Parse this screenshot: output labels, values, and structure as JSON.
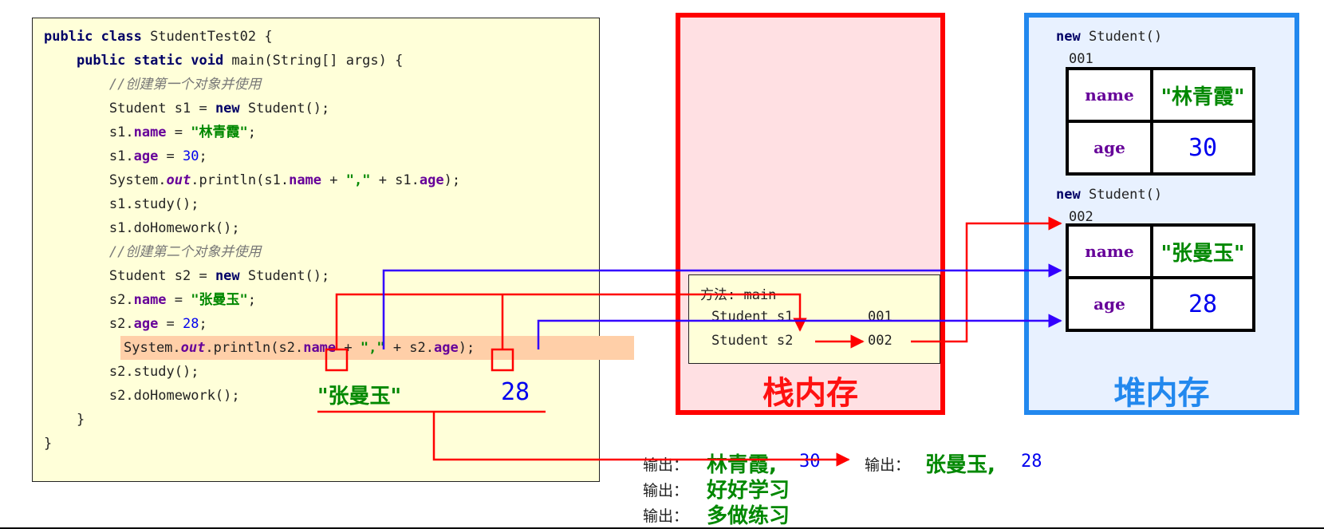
{
  "code": {
    "lines": [
      {
        "parts": [
          {
            "t": "public class ",
            "c": "kw"
          },
          {
            "t": "StudentTest02 {",
            "c": ""
          }
        ]
      },
      {
        "parts": [
          {
            "t": "    "
          },
          {
            "t": "public static void ",
            "c": "kw"
          },
          {
            "t": "main(String[] args) {",
            "c": ""
          }
        ]
      },
      {
        "parts": [
          {
            "t": "        "
          },
          {
            "t": "//创建第一个对象并使用",
            "c": "cm"
          }
        ]
      },
      {
        "parts": [
          {
            "t": "        Student s1 = "
          },
          {
            "t": "new",
            "c": "kw"
          },
          {
            "t": " Student();"
          }
        ]
      },
      {
        "parts": [
          {
            "t": "        s1."
          },
          {
            "t": "name",
            "c": "field"
          },
          {
            "t": " = "
          },
          {
            "t": "\"林青霞\"",
            "c": "str"
          },
          {
            "t": ";"
          }
        ]
      },
      {
        "parts": [
          {
            "t": "        s1."
          },
          {
            "t": "age",
            "c": "field"
          },
          {
            "t": " = "
          },
          {
            "t": "30",
            "c": "num"
          },
          {
            "t": ";"
          }
        ]
      },
      {
        "parts": [
          {
            "t": "        System."
          },
          {
            "t": "out",
            "c": "out"
          },
          {
            "t": ".println(s1."
          },
          {
            "t": "name",
            "c": "field"
          },
          {
            "t": " + "
          },
          {
            "t": "\",\"",
            "c": "str"
          },
          {
            "t": " + s1."
          },
          {
            "t": "age",
            "c": "field"
          },
          {
            "t": ");"
          }
        ]
      },
      {
        "parts": [
          {
            "t": "        s1.study();"
          }
        ]
      },
      {
        "parts": [
          {
            "t": "        s1.doHomework();"
          }
        ]
      },
      {
        "parts": [
          {
            "t": "        "
          },
          {
            "t": "//创建第二个对象并使用",
            "c": "cm"
          }
        ]
      },
      {
        "parts": [
          {
            "t": "        Student s2 = "
          },
          {
            "t": "new",
            "c": "kw"
          },
          {
            "t": " Student();"
          }
        ]
      },
      {
        "parts": [
          {
            "t": "        s2."
          },
          {
            "t": "name",
            "c": "field"
          },
          {
            "t": " = "
          },
          {
            "t": "\"张曼玉\"",
            "c": "str"
          },
          {
            "t": ";"
          }
        ]
      },
      {
        "parts": [
          {
            "t": "        s2."
          },
          {
            "t": "age",
            "c": "field"
          },
          {
            "t": " = "
          },
          {
            "t": "28",
            "c": "num"
          },
          {
            "t": ";"
          }
        ]
      },
      {
        "parts": [
          {
            "t": "        System."
          },
          {
            "t": "out",
            "c": "out"
          },
          {
            "t": ".println(s2."
          },
          {
            "t": "name",
            "c": "field"
          },
          {
            "t": " + "
          },
          {
            "t": "\",\"",
            "c": "str"
          },
          {
            "t": " + s2."
          },
          {
            "t": "age",
            "c": "field"
          },
          {
            "t": ");"
          }
        ],
        "highlight": true
      },
      {
        "parts": [
          {
            "t": "        s2.study();"
          }
        ]
      },
      {
        "parts": [
          {
            "t": "        s2.doHomework();"
          }
        ]
      },
      {
        "parts": [
          {
            "t": "    }"
          }
        ]
      },
      {
        "parts": [
          {
            "t": "}"
          }
        ]
      }
    ]
  },
  "stack": {
    "title": "栈内存",
    "frame_label": "方法: main",
    "rows": [
      {
        "var": "Student s1",
        "addr": "001"
      },
      {
        "var": "Student s2",
        "addr": "002"
      }
    ]
  },
  "heap": {
    "title": "堆内存",
    "objects": [
      {
        "label": "new Student()",
        "addr": "001",
        "fields": [
          {
            "name": "name",
            "value": "\"林青霞\"",
            "kind": "str"
          },
          {
            "name": "age",
            "value": "30",
            "kind": "num"
          }
        ]
      },
      {
        "label": "new Student()",
        "addr": "002",
        "fields": [
          {
            "name": "name",
            "value": "\"张曼玉\"",
            "kind": "str"
          },
          {
            "name": "age",
            "value": "28",
            "kind": "num"
          }
        ]
      }
    ]
  },
  "annotations": {
    "s2_name_value": "\"张曼玉\"",
    "s2_age_value": "28"
  },
  "output": {
    "label": "输出：",
    "line1_name": "林青霞,",
    "line1_age": "30",
    "line1b_name": "张曼玉,",
    "line1b_age": "28",
    "line2": "好好学习",
    "line3": "多做练习"
  },
  "colors": {
    "red": "#ff0000",
    "blue": "#3300ff",
    "stack_border": "#ff0000",
    "heap_border": "#2288ee"
  }
}
